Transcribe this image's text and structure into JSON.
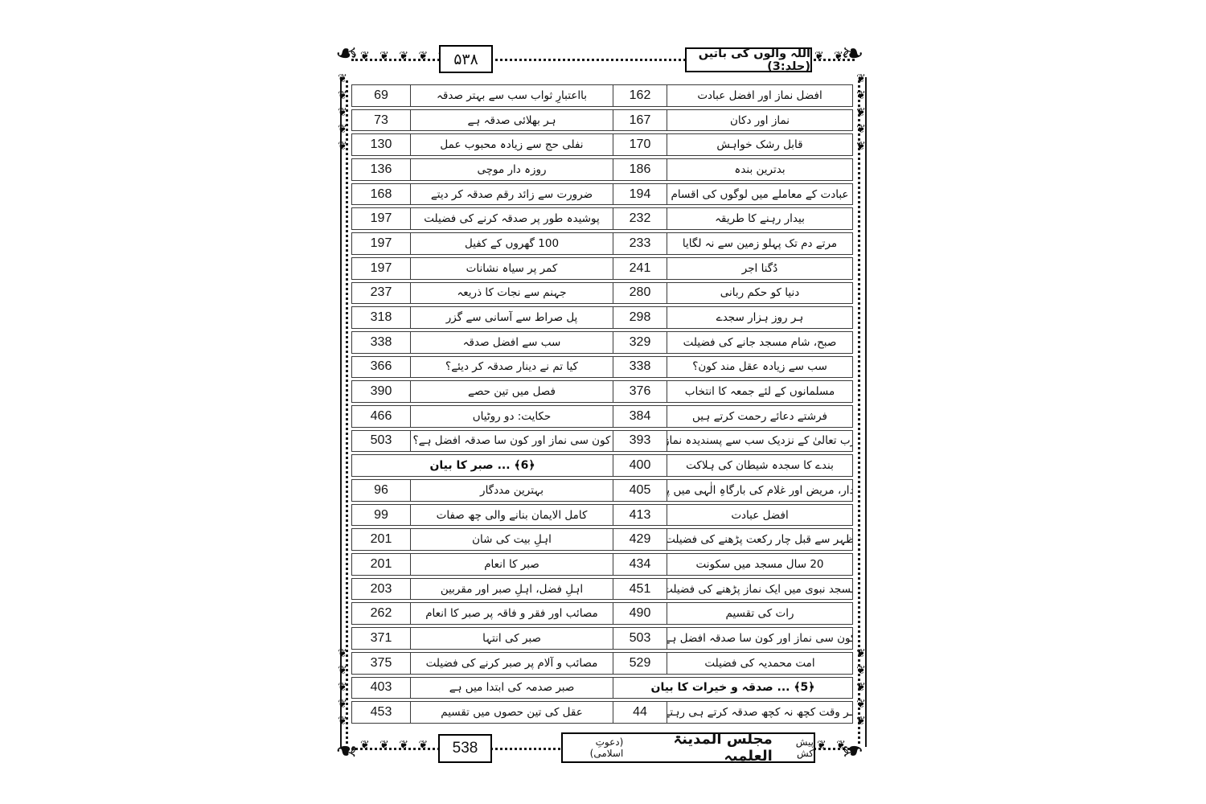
{
  "header": {
    "page_number_urdu": "۵۳۸",
    "book_title": "اللہ والوں کی باتیں (جلد:3)"
  },
  "footer": {
    "page_number": "538",
    "publisher_prefix": "پیش کش",
    "publisher_name": "مجلس المدینۃ العلمیہ",
    "publisher_suffix": "(دعوتِ اسلامی)"
  },
  "decor": {
    "vine_glyph": "❦",
    "corner_glyph": "❧",
    "flower_glyph": "✿",
    "line_color": "#1c1c1c"
  },
  "toc": {
    "rows": [
      {
        "left": {
          "num": "69",
          "title": "بااعتبارِ ثواب سب سے بہتر صدقہ"
        },
        "right": {
          "num": "162",
          "title": "افضل نماز اور افضل عبادت"
        }
      },
      {
        "left": {
          "num": "73",
          "title": "ہر بھلائی صدقہ ہے"
        },
        "right": {
          "num": "167",
          "title": "نماز اور دکان"
        }
      },
      {
        "left": {
          "num": "130",
          "title": "نفلی حج سے زیادہ محبوب عمل"
        },
        "right": {
          "num": "170",
          "title": "قابل رشک خواہش"
        }
      },
      {
        "left": {
          "num": "136",
          "title": "روزہ دار موچی"
        },
        "right": {
          "num": "186",
          "title": "بدترین بندہ"
        }
      },
      {
        "left": {
          "num": "168",
          "title": "ضرورت سے زائد رقم صدقہ کر دیتے"
        },
        "right": {
          "num": "194",
          "title": "عبادت کے معاملے میں لوگوں کی اقسام"
        }
      },
      {
        "left": {
          "num": "197",
          "title": "پوشیدہ طور پر صدقہ کرنے کی فضیلت"
        },
        "right": {
          "num": "232",
          "title": "بیدار رہنے کا طریقہ"
        }
      },
      {
        "left": {
          "num": "197",
          "title": "100 گھروں کے کفیل"
        },
        "right": {
          "num": "233",
          "title": "مرتے دم تک پہلو زمین سے نہ لگایا"
        }
      },
      {
        "left": {
          "num": "197",
          "title": "کمر پر سیاہ نشانات"
        },
        "right": {
          "num": "241",
          "title": "دُگنا اجر"
        }
      },
      {
        "left": {
          "num": "237",
          "title": "جہنم سے نجات کا ذریعہ"
        },
        "right": {
          "num": "280",
          "title": "دنیا کو حکم ربانی"
        }
      },
      {
        "left": {
          "num": "318",
          "title": "پل صراط سے آسانی سے گزر"
        },
        "right": {
          "num": "298",
          "title": "ہر روز ہزار سجدے"
        }
      },
      {
        "left": {
          "num": "338",
          "title": "سب سے افضل صدقہ"
        },
        "right": {
          "num": "329",
          "title": "صبح، شام مسجد جانے کی فضیلت"
        }
      },
      {
        "left": {
          "num": "366",
          "title": "کیا تم نے دینار صدقہ کر دیئے؟"
        },
        "right": {
          "num": "338",
          "title": "سب سے زیادہ عقل مند کون؟"
        }
      },
      {
        "left": {
          "num": "390",
          "title": "فصل میں تین حصے"
        },
        "right": {
          "num": "376",
          "title": "مسلمانوں کے لئے جمعہ کا انتخاب"
        }
      },
      {
        "left": {
          "num": "466",
          "title": "حکایت: دو روٹیاں"
        },
        "right": {
          "num": "384",
          "title": "فرشتے دعائے رحمت کرتے ہیں"
        }
      },
      {
        "left": {
          "num": "503",
          "title": "کون سی نماز اور کون سا صدقہ افضل ہے؟"
        },
        "right": {
          "num": "393",
          "title": "رب تعالیٰ کے نزدیک سب سے پسندیدہ نماز"
        }
      },
      {
        "left": {
          "section": "﴿6﴾ ... صبر کا بیان"
        },
        "right": {
          "num": "400",
          "title": "بندے کا سجدہ شیطان کی ہلاکت"
        }
      },
      {
        "left": {
          "num": "96",
          "title": "بہترین مددگار"
        },
        "right": {
          "num": "405",
          "title": "مال دار، مریض اور غلام کی بارگاہِ الٰہی میں پیشی"
        }
      },
      {
        "left": {
          "num": "99",
          "title": "کامل الایمان بنانے والی چھ صفات"
        },
        "right": {
          "num": "413",
          "title": "افضل عبادت"
        }
      },
      {
        "left": {
          "num": "201",
          "title": "اہلِ بیت کی شان"
        },
        "right": {
          "num": "429",
          "title": "ظہر سے قبل چار رکعت پڑھنے کی فضیلت"
        }
      },
      {
        "left": {
          "num": "201",
          "title": "صبر کا انعام"
        },
        "right": {
          "num": "434",
          "title": "20 سال مسجد میں سکونت"
        }
      },
      {
        "left": {
          "num": "203",
          "title": "اہلِ فضل، اہلِ صبر اور مقربین"
        },
        "right": {
          "num": "451",
          "title": "مسجد نبوی میں ایک نماز پڑھنے کی فضیلت"
        }
      },
      {
        "left": {
          "num": "262",
          "title": "مصائب اور فقر و فاقہ پر صبر کا انعام"
        },
        "right": {
          "num": "490",
          "title": "رات کی تقسیم"
        }
      },
      {
        "left": {
          "num": "371",
          "title": "صبر کی انتہا"
        },
        "right": {
          "num": "503",
          "title": "کون سی نماز اور کون سا صدقہ افضل ہے"
        }
      },
      {
        "left": {
          "num": "375",
          "title": "مصائب و آلام پر صبر کرنے کی فضیلت"
        },
        "right": {
          "num": "529",
          "title": "امت محمدیہ کی فضیلت"
        }
      },
      {
        "left": {
          "num": "403",
          "title": "صبر صدمہ کی ابتدا میں ہے"
        },
        "right": {
          "section": "﴿5﴾ ... صدقہ و خیرات کا بیان"
        }
      },
      {
        "left": {
          "num": "453",
          "title": "عقل کی تین حصوں میں تقسیم"
        },
        "right": {
          "num": "44",
          "title": "ہر وقت کچھ نہ کچھ صدقہ کرتے ہی رہتے"
        }
      }
    ]
  }
}
